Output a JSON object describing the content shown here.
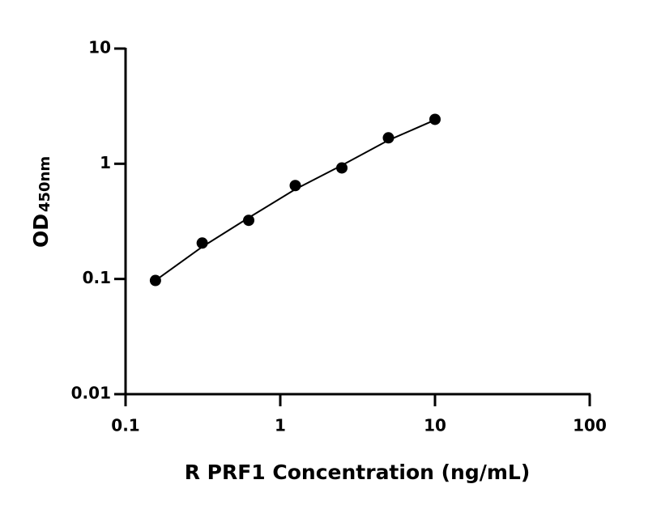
{
  "chart_data": {
    "type": "scatter",
    "xlabel": "R PRF1 Concentration (ng/mL)",
    "ylabel": "OD",
    "ylabel_sub": "450nm",
    "x": [
      0.156,
      0.313,
      0.625,
      1.25,
      2.5,
      5,
      10
    ],
    "series": [
      {
        "type": "scatter",
        "color": "#000000",
        "values": [
          0.097,
          0.205,
          0.323,
          0.647,
          0.92,
          1.68,
          2.43
        ]
      },
      {
        "type": "line",
        "color": "#000000",
        "values": [
          0.097,
          0.19,
          0.34,
          0.6,
          0.97,
          1.6,
          2.4
        ]
      }
    ],
    "xscale": "log",
    "yscale": "log",
    "xlim": [
      0.1,
      100
    ],
    "ylim": [
      0.01,
      10
    ],
    "xticks": [
      0.1,
      1,
      10,
      100
    ],
    "yticks": [
      0.01,
      0.1,
      1,
      10
    ]
  }
}
